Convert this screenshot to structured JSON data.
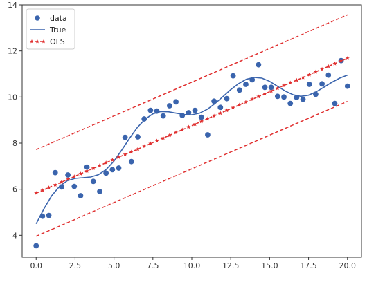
{
  "chart_data": {
    "type": "scatter",
    "title": "",
    "xlabel": "",
    "ylabel": "",
    "xlim": [
      -0.9,
      20.9
    ],
    "ylim": [
      3.05,
      14.0
    ],
    "xticks": [
      0.0,
      2.5,
      5.0,
      7.5,
      10.0,
      12.5,
      15.0,
      17.5,
      20.0
    ],
    "xtick_labels": [
      "0.0",
      "2.5",
      "5.0",
      "7.5",
      "10.0",
      "12.5",
      "15.0",
      "17.5",
      "20.0"
    ],
    "yticks": [
      4,
      6,
      8,
      10,
      12,
      14
    ],
    "ytick_labels": [
      "4",
      "6",
      "8",
      "10",
      "12",
      "14"
    ],
    "grid": false,
    "legend": {
      "position": "top-left",
      "entries": [
        "data",
        "True",
        "OLS"
      ]
    },
    "colors": {
      "data": "#3a64ad",
      "true": "#3a64ad",
      "ols": "#e03030"
    },
    "series": [
      {
        "name": "data",
        "kind": "scatter",
        "x": [
          0.0,
          0.408,
          0.816,
          1.224,
          1.633,
          2.041,
          2.449,
          2.857,
          3.265,
          3.673,
          4.082,
          4.49,
          4.898,
          5.306,
          5.714,
          6.122,
          6.531,
          6.939,
          7.347,
          7.755,
          8.163,
          8.571,
          8.98,
          9.388,
          9.796,
          10.204,
          10.612,
          11.02,
          11.429,
          11.837,
          12.245,
          12.653,
          13.061,
          13.469,
          13.878,
          14.286,
          14.694,
          15.102,
          15.51,
          15.918,
          16.327,
          16.735,
          17.143,
          17.551,
          17.959,
          18.367,
          18.776,
          19.184,
          19.592,
          20.0
        ],
        "y": [
          3.55,
          4.83,
          4.86,
          6.72,
          6.1,
          6.62,
          6.12,
          5.72,
          6.96,
          6.34,
          5.9,
          6.7,
          6.85,
          6.92,
          8.25,
          7.2,
          8.27,
          9.05,
          9.42,
          9.39,
          9.18,
          9.62,
          9.79,
          9.2,
          9.32,
          9.42,
          9.12,
          8.36,
          9.82,
          9.55,
          9.93,
          10.92,
          10.3,
          10.55,
          10.75,
          11.4,
          10.42,
          10.42,
          10.03,
          10.0,
          9.72,
          9.98,
          9.9,
          10.55,
          10.12,
          10.57,
          10.95,
          9.72,
          11.58,
          10.47
        ]
      },
      {
        "name": "True",
        "kind": "line",
        "x": [
          0.0,
          0.5,
          1.0,
          1.5,
          2.0,
          2.5,
          3.0,
          3.5,
          4.0,
          4.5,
          5.0,
          5.5,
          6.0,
          6.5,
          7.0,
          7.5,
          8.0,
          8.5,
          9.0,
          9.5,
          10.0,
          10.5,
          11.0,
          11.5,
          12.0,
          12.5,
          13.0,
          13.5,
          14.0,
          14.5,
          15.0,
          15.5,
          16.0,
          16.5,
          17.0,
          17.5,
          18.0,
          18.5,
          19.0,
          19.5,
          20.0
        ],
        "y": [
          4.5,
          5.15,
          5.72,
          6.12,
          6.37,
          6.47,
          6.5,
          6.53,
          6.63,
          6.86,
          7.22,
          7.7,
          8.21,
          8.68,
          9.04,
          9.27,
          9.37,
          9.36,
          9.3,
          9.24,
          9.23,
          9.3,
          9.47,
          9.72,
          10.02,
          10.32,
          10.58,
          10.77,
          10.85,
          10.82,
          10.68,
          10.47,
          10.26,
          10.1,
          10.03,
          10.08,
          10.23,
          10.43,
          10.64,
          10.82,
          10.95
        ]
      },
      {
        "name": "OLS",
        "kind": "line-markers",
        "x": [
          0.0,
          0.408,
          0.816,
          1.224,
          1.633,
          2.041,
          2.449,
          2.857,
          3.265,
          3.673,
          4.082,
          4.49,
          4.898,
          5.306,
          5.714,
          6.122,
          6.531,
          6.939,
          7.347,
          7.755,
          8.163,
          8.571,
          8.98,
          9.388,
          9.796,
          10.204,
          10.612,
          11.02,
          11.429,
          11.837,
          12.245,
          12.653,
          13.061,
          13.469,
          13.878,
          14.286,
          14.694,
          15.102,
          15.51,
          15.918,
          16.327,
          16.735,
          17.143,
          17.551,
          17.959,
          18.367,
          18.776,
          19.184,
          19.592,
          20.0
        ],
        "y": [
          5.83,
          5.95,
          6.07,
          6.19,
          6.31,
          6.43,
          6.55,
          6.67,
          6.79,
          6.91,
          7.03,
          7.15,
          7.27,
          7.39,
          7.51,
          7.62,
          7.74,
          7.86,
          7.98,
          8.1,
          8.22,
          8.34,
          8.46,
          8.58,
          8.7,
          8.82,
          8.94,
          9.06,
          9.18,
          9.3,
          9.42,
          9.54,
          9.66,
          9.78,
          9.9,
          10.02,
          10.14,
          10.26,
          10.38,
          10.5,
          10.62,
          10.73,
          10.85,
          10.97,
          11.09,
          11.21,
          11.33,
          11.45,
          11.57,
          11.68
        ]
      },
      {
        "name": "",
        "kind": "band-upper",
        "x": [
          0.0,
          20.0
        ],
        "y": [
          7.72,
          13.57
        ]
      },
      {
        "name": "",
        "kind": "band-lower",
        "x": [
          0.0,
          20.0
        ],
        "y": [
          3.96,
          9.81
        ]
      }
    ]
  }
}
